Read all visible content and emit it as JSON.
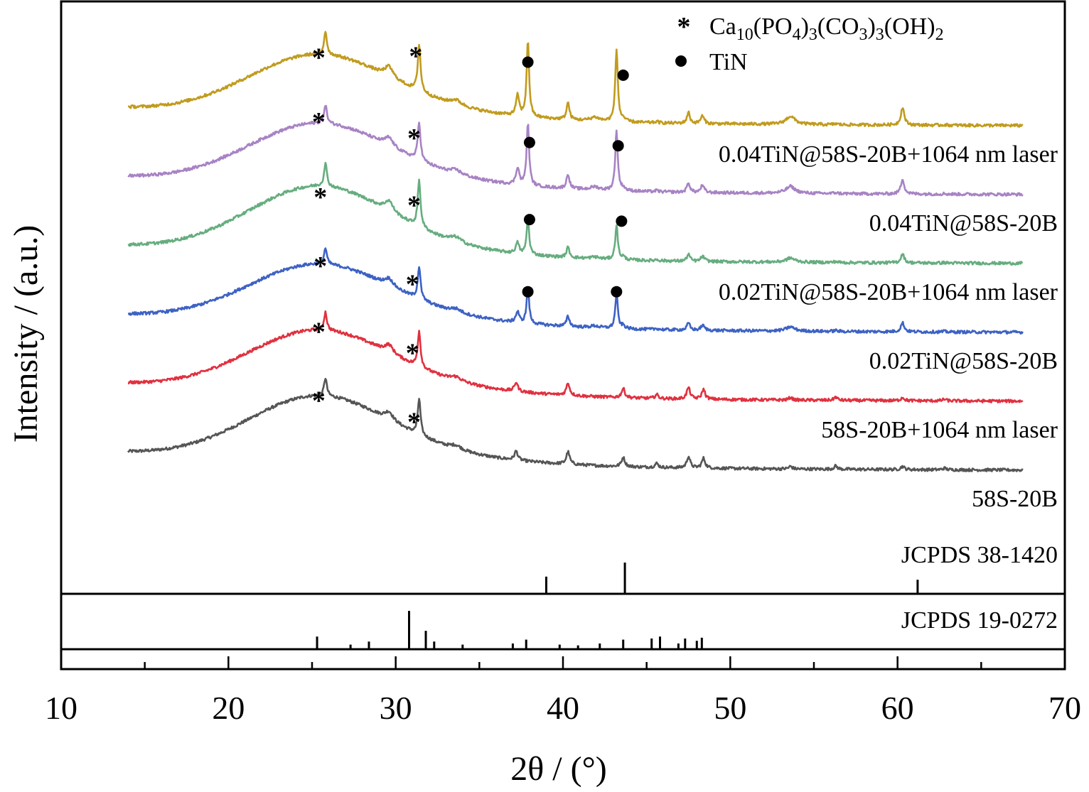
{
  "chart_data": {
    "type": "line",
    "xlabel": "2θ / (°)",
    "ylabel": "Intensity / (a.u.)",
    "xlim": [
      10,
      70
    ],
    "x_ticks": [
      "10",
      "20",
      "30",
      "40",
      "50",
      "60",
      "70"
    ],
    "grid": false,
    "legend_position": "top-right",
    "legend": [
      {
        "symbol": "*",
        "html_label": "Ca<tspan font-size='24' dy='8'>10</tspan><tspan dy='-8'>(PO</tspan><tspan font-size='24' dy='8'>4</tspan><tspan dy='-8'>)</tspan><tspan font-size='24' dy='8'>3</tspan><tspan dy='-8'>(CO</tspan><tspan font-size='24' dy='8'>3</tspan><tspan dy='-8'>)</tspan><tspan font-size='24' dy='8'>3</tspan><tspan dy='-8'>(OH)</tspan><tspan font-size='24' dy='8'>2</tspan>",
        "label": "Ca10(PO4)3(CO3)3(OH)2"
      },
      {
        "symbol": "●",
        "label": "TiN"
      }
    ],
    "reference_patterns": [
      {
        "name": "JCPDS 38-1420",
        "peaks": [
          {
            "x": 39.0,
            "rel": 0.55
          },
          {
            "x": 43.7,
            "rel": 1.0
          },
          {
            "x": 61.2,
            "rel": 0.45
          }
        ]
      },
      {
        "name": "JCPDS 19-0272",
        "peaks": [
          {
            "x": 25.3,
            "rel": 0.33
          },
          {
            "x": 27.3,
            "rel": 0.12
          },
          {
            "x": 28.4,
            "rel": 0.2
          },
          {
            "x": 30.8,
            "rel": 1.0
          },
          {
            "x": 31.8,
            "rel": 0.48
          },
          {
            "x": 32.3,
            "rel": 0.2
          },
          {
            "x": 34.0,
            "rel": 0.12
          },
          {
            "x": 37.0,
            "rel": 0.15
          },
          {
            "x": 37.8,
            "rel": 0.25
          },
          {
            "x": 39.8,
            "rel": 0.12
          },
          {
            "x": 40.9,
            "rel": 0.1
          },
          {
            "x": 42.2,
            "rel": 0.15
          },
          {
            "x": 43.6,
            "rel": 0.25
          },
          {
            "x": 45.3,
            "rel": 0.28
          },
          {
            "x": 45.8,
            "rel": 0.33
          },
          {
            "x": 46.9,
            "rel": 0.15
          },
          {
            "x": 47.3,
            "rel": 0.28
          },
          {
            "x": 48.0,
            "rel": 0.22
          },
          {
            "x": 48.3,
            "rel": 0.3
          }
        ]
      }
    ],
    "series": [
      {
        "name": "58S-20B",
        "color": "#555555",
        "offset": 0,
        "tin": 0,
        "hap": 1.0,
        "amorph": 1.0,
        "extra": 1.0,
        "markers": [
          {
            "symbol": "*",
            "x": 25.4,
            "y": 2.1
          },
          {
            "symbol": "*",
            "x": 31.1,
            "y": 1.45
          }
        ]
      },
      {
        "name": "58S-20B+1064 nm laser",
        "color": "#e0313f",
        "offset": 1,
        "tin": 0,
        "hap": 1.0,
        "amorph": 0.95,
        "extra": 1.0,
        "markers": [
          {
            "symbol": "*",
            "x": 25.4,
            "y": 2.1
          },
          {
            "symbol": "*",
            "x": 31.0,
            "y": 1.45
          }
        ]
      },
      {
        "name": "0.02TiN@58S-20B",
        "color": "#3d62c4",
        "offset": 2,
        "tin": 0.55,
        "hap": 0.9,
        "amorph": 0.9,
        "extra": 0.3,
        "markers": [
          {
            "symbol": "*",
            "x": 25.5,
            "y": 2.0
          },
          {
            "symbol": "*",
            "x": 31.0,
            "y": 1.45
          },
          {
            "symbol": "●",
            "x": 37.9,
            "y": 1.05
          },
          {
            "symbol": "●",
            "x": 43.2,
            "y": 1.05
          }
        ]
      },
      {
        "name": "0.02TiN@58S-20B+1064 nm laser",
        "color": "#66ad7f",
        "offset": 3,
        "tin": 0.55,
        "hap": 1.3,
        "amorph": 1.05,
        "extra": 0.3,
        "markers": [
          {
            "symbol": "*",
            "x": 25.5,
            "y": 2.0
          },
          {
            "symbol": "*",
            "x": 31.1,
            "y": 1.75
          },
          {
            "symbol": "●",
            "x": 38.0,
            "y": 1.15
          },
          {
            "symbol": "●",
            "x": 43.5,
            "y": 1.1
          }
        ]
      },
      {
        "name": "0.04TiN@58S-20B",
        "color": "#a783c4",
        "offset": 4,
        "tin": 0.95,
        "hap": 1.05,
        "amorph": 0.95,
        "extra": 0.3,
        "markers": [
          {
            "symbol": "*",
            "x": 25.4,
            "y": 2.2
          },
          {
            "symbol": "*",
            "x": 31.1,
            "y": 1.7
          },
          {
            "symbol": "●",
            "x": 38.0,
            "y": 1.4
          },
          {
            "symbol": "●",
            "x": 43.3,
            "y": 1.3
          }
        ]
      },
      {
        "name": "0.04TiN@58S-20B+1064 nm laser",
        "color": "#c19b1e",
        "offset": 5,
        "tin": 1.15,
        "hap": 1.3,
        "amorph": 0.95,
        "extra": 0.3,
        "markers": [
          {
            "symbol": "*",
            "x": 25.4,
            "y": 2.05
          },
          {
            "symbol": "*",
            "x": 31.2,
            "y": 2.1
          },
          {
            "symbol": "●",
            "x": 37.9,
            "y": 1.75
          },
          {
            "symbol": "●",
            "x": 43.6,
            "y": 1.35
          }
        ]
      }
    ]
  }
}
